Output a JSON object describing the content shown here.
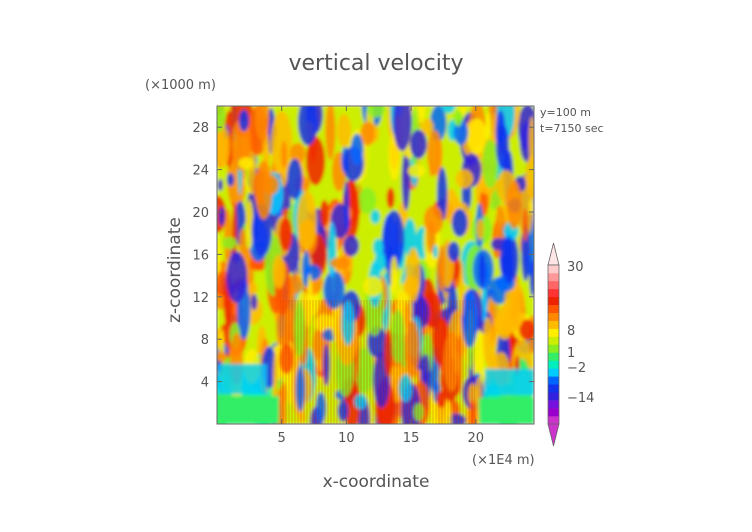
{
  "chart_data": {
    "type": "heatmap",
    "title": "vertical velocity",
    "xlabel": "x-coordinate",
    "ylabel": "z-coordinate",
    "x_unit_label": "(×1E4 m)",
    "y_unit_label": "(×1000 m)",
    "info_lines": [
      "y=100 m",
      "t=7150 sec"
    ],
    "xlim": [
      0,
      24.5
    ],
    "ylim": [
      0,
      30
    ],
    "x_ticks": [
      5,
      10,
      15,
      20
    ],
    "y_ticks": [
      4,
      8,
      12,
      16,
      20,
      24,
      28
    ],
    "colorbar": {
      "tick_labels": [
        {
          "value": 30,
          "label": "30"
        },
        {
          "value": 8,
          "label": "8"
        },
        {
          "value": 1,
          "label": "1"
        },
        {
          "value": -2,
          "label": "−2"
        },
        {
          "value": -14,
          "label": "−14"
        }
      ],
      "bands": [
        {
          "color": "#cc33cc"
        },
        {
          "color": "#9900cc"
        },
        {
          "color": "#7711dd"
        },
        {
          "color": "#3322dd"
        },
        {
          "color": "#1133ee"
        },
        {
          "color": "#0066ff"
        },
        {
          "color": "#00ccff"
        },
        {
          "color": "#00eebb"
        },
        {
          "color": "#33ee66"
        },
        {
          "color": "#88ee22"
        },
        {
          "color": "#ccee00"
        },
        {
          "color": "#ffee00"
        },
        {
          "color": "#ffbb00"
        },
        {
          "color": "#ff8800"
        },
        {
          "color": "#ff5500"
        },
        {
          "color": "#ee2200"
        },
        {
          "color": "#ff3333"
        },
        {
          "color": "#ff6666"
        },
        {
          "color": "#ff9999"
        },
        {
          "color": "#ffcccc"
        }
      ]
    }
  }
}
